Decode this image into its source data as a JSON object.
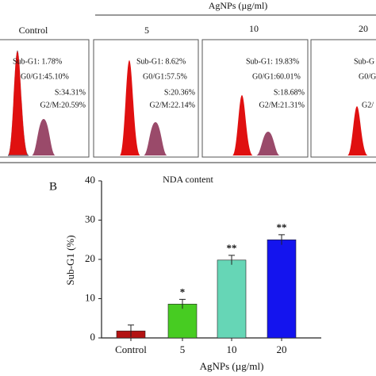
{
  "panel_a": {
    "header": "AgNPs (µg/ml)",
    "x_label": "NDA content",
    "panels": [
      {
        "title": "Control",
        "stats": [
          "Sub-G1: 1.78%",
          "G0/G1:45.10%",
          "S:34.31%",
          "G2/M:20.59%"
        ]
      },
      {
        "title": "5",
        "stats": [
          "Sub-G1: 8.62%",
          "G0/G1:57.5%",
          "S:20.36%",
          "G2/M:22.14%"
        ]
      },
      {
        "title": "10",
        "stats": [
          "Sub-G1: 19.83%",
          "G0/G1:60.01%",
          "S:18.68%",
          "G2/M:21.31%"
        ]
      },
      {
        "title": "20",
        "stats": [
          "Sub-G",
          "G0/G",
          "G2/"
        ]
      }
    ]
  },
  "chart_data": {
    "type": "bar",
    "panel_label": "B",
    "y_label": "Sub-G1 (%)",
    "x_label": "AgNPs (µg/ml)",
    "categories": [
      "Control",
      "5",
      "10",
      "20"
    ],
    "values": [
      1.78,
      8.62,
      19.83,
      25
    ],
    "errors": [
      1.5,
      1.2,
      1.2,
      1.3
    ],
    "annotations": [
      null,
      "*",
      "**",
      "**"
    ],
    "colors": [
      "#b31212",
      "#47cc22",
      "#66d6b6",
      "#1414ee"
    ],
    "ylim": [
      0,
      40
    ],
    "yticks": [
      0,
      10,
      20,
      30,
      40
    ],
    "grid": false
  }
}
